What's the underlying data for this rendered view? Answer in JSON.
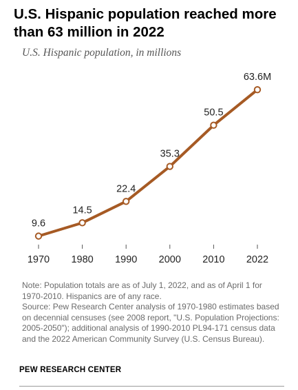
{
  "title": "U.S. Hispanic population reached more than 63 million in 2022",
  "subtitle": "U.S. Hispanic population, in millions",
  "notes": [
    "Note: Population totals are as of July 1, 2022, and as of April 1 for 1970-2010. Hispanics are of any race.",
    "Source: Pew Research Center analysis of 1970-1980 estimates based on decennial censuses (see 2008 report, \"U.S. Population Projections: 2005-2050\"); additional analysis of 1990-2010 PL94-171 census data and the 2022 American Community Survey (U.S. Census Bureau)."
  ],
  "source_label": "PEW RESEARCH CENTER",
  "colors": {
    "line": "#A65A24",
    "marker_fill": "#ffffff",
    "axis": "#555555",
    "text": "#222222"
  },
  "chart_data": {
    "type": "line",
    "title": "U.S. Hispanic population reached more than 63 million in 2022",
    "subtitle": "U.S. Hispanic population, in millions",
    "x": [
      "1970",
      "1980",
      "1990",
      "2000",
      "2010",
      "2022"
    ],
    "series": [
      {
        "values": [
          9.6,
          14.5,
          22.4,
          35.3,
          50.5,
          63.6
        ],
        "data_labels": [
          "9.6",
          "14.5",
          "22.4",
          "35.3",
          "50.5",
          "63.6M"
        ]
      }
    ],
    "xlabel": "",
    "ylabel": "",
    "ylim": [
      0,
      70
    ],
    "grid": false,
    "legend": "none"
  }
}
